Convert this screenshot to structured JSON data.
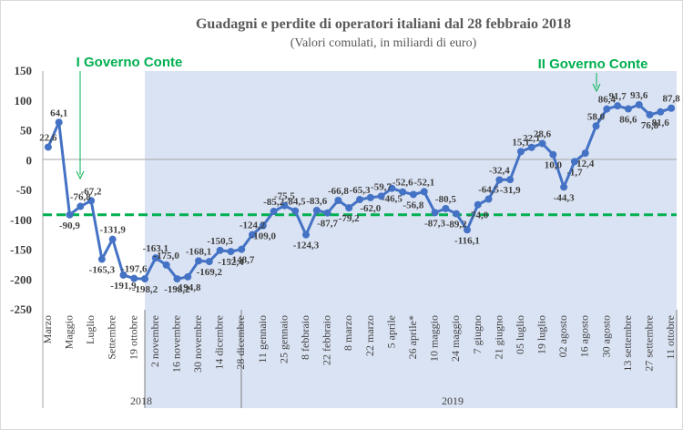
{
  "chart_data": {
    "type": "line",
    "title": "Guadagni e perdite di operatori italiani dal 28 febbraio 2018",
    "subtitle": "(Valori comulati, in miliardi di euro)",
    "ylim": [
      -250,
      150
    ],
    "yticks": [
      150,
      100,
      50,
      0,
      -50,
      -100,
      -150,
      -200,
      -250
    ],
    "reference_line": -90.9,
    "x_tick_labels": [
      "Marzo",
      "Maggio",
      "Luglio",
      "Settembre",
      "19 ottobre",
      "2 novembre",
      "16 novembre",
      "30 novembre",
      "14 dicembre",
      "28 dicembre",
      "11 gennaio",
      "25 gennaio",
      "8 febbraio",
      "22 febbraio",
      "8 marzo",
      "22 marzo",
      "5 aprile",
      "26 aprile*",
      "10 maggio",
      "24 maggio",
      "7 giugno",
      "21 giugno",
      "05 luglio",
      "19 luglio",
      "02 agosto",
      "16 agosto",
      "30 agosto",
      "13 settembre",
      "27 settembre",
      "11 ottobre"
    ],
    "year_labels": [
      "2018",
      "2019"
    ],
    "series": [
      {
        "color": "#4472c4",
        "values": [
          22.6,
          64.1,
          -90.9,
          -76.8,
          -67.2,
          -165.3,
          -131.9,
          -191.9,
          -197.6,
          -198.2,
          -163.1,
          -175.0,
          -198.2,
          -194.8,
          -168.1,
          -169.2,
          -150.5,
          -152.4,
          -148.7,
          -124.2,
          -109.0,
          -85.2,
          -75.5,
          -84.5,
          -124.3,
          -83.6,
          -87.7,
          -66.8,
          -79.2,
          -65.3,
          -62.0,
          -59.7,
          -46.5,
          -52.6,
          -56.8,
          -52.1,
          -87.3,
          -80.5,
          -89.2,
          -116.1,
          -74.0,
          -64.5,
          -32.4,
          -31.9,
          15.1,
          22.1,
          28.6,
          10.0,
          -44.3,
          -1.7,
          12.4,
          58.0,
          86.4,
          91.7,
          86.6,
          93.6,
          76.8,
          81.6,
          87.8
        ],
        "labels": [
          "22,6",
          "64,1",
          "-90,9",
          "-76,8",
          "-67,2",
          "-165,3",
          "-131,9",
          "-191,9",
          "-197,6",
          "-198,2",
          "-163,1",
          "-175,0",
          "-198,2",
          "-194,8",
          "-168,1",
          "-169,2",
          "-150,5",
          "-152,4",
          "-148,7",
          "-124,2",
          "-109,0",
          "-85,2",
          "-75,5",
          "-84,5",
          "-124,3",
          "-83,6",
          "-87,7",
          "-66,8",
          "-79,2",
          "-65,3",
          "-62,0",
          "-59,7",
          "-46,5",
          "-52,6",
          "-56,8",
          "-52,1",
          "-87,3",
          "-80,5",
          "-89,2",
          "-116,1",
          "-74,0",
          "-64,5",
          "-32,4",
          "-31,9",
          "15,1",
          "22,1",
          "28,6",
          "10,0",
          "-44,3",
          "-1,7",
          "12,4",
          "58,0",
          "86,4",
          "91,7",
          "86,6",
          "93,6",
          "76,8",
          "81,6",
          "87,8"
        ]
      }
    ],
    "annotations": [
      "I Governo Conte",
      "II Governo Conte"
    ],
    "grid": false,
    "legend": "none"
  }
}
